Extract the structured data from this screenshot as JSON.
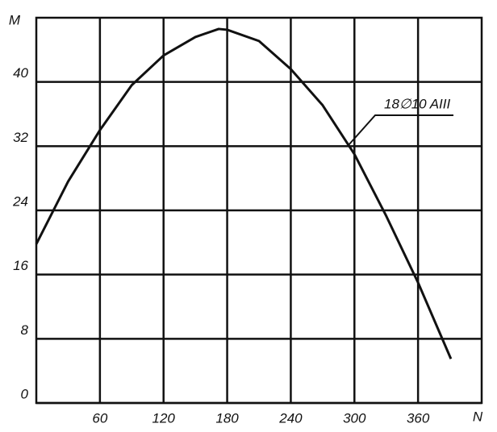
{
  "chart_data": {
    "type": "line",
    "x_label": "N",
    "y_label": "M",
    "annotation": "18∅10 AIII",
    "x": [
      0,
      30,
      60,
      90,
      120,
      150,
      172,
      180,
      210,
      240,
      270,
      300,
      330,
      360,
      391
    ],
    "series": [
      {
        "name": "18∅10 AIII",
        "color": "#111111",
        "values": [
          19.8,
          27.6,
          34,
          39.6,
          43.3,
          45.6,
          46.6,
          46.5,
          45.1,
          41.6,
          37.1,
          31,
          23.3,
          15,
          5.5
        ]
      }
    ],
    "xlim": [
      0,
      420
    ],
    "ylim": [
      0,
      48
    ],
    "xticks": [
      60,
      120,
      180,
      240,
      300,
      360
    ],
    "yticks": [
      0,
      8,
      16,
      24,
      32,
      40
    ],
    "grid": true
  }
}
